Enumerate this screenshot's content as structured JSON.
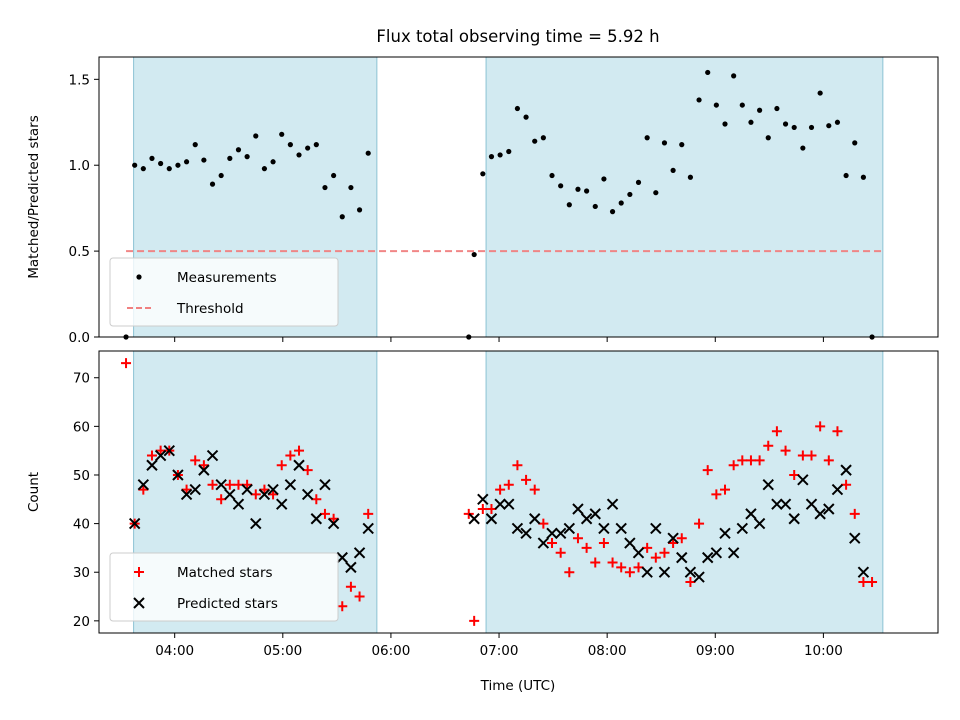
{
  "chart_data": {
    "title": "Flux total observing time = 5.92 h",
    "xlabel": "Time (UTC)",
    "x_unit": "hours (UTC)",
    "x_ticks": [
      {
        "x": 4,
        "label": "04:00"
      },
      {
        "x": 5,
        "label": "05:00"
      },
      {
        "x": 6,
        "label": "06:00"
      },
      {
        "x": 7,
        "label": "07:00"
      },
      {
        "x": 8,
        "label": "08:00"
      },
      {
        "x": 9,
        "label": "09:00"
      },
      {
        "x": 10,
        "label": "10:00"
      }
    ],
    "xlim": [
      3.3,
      11.06
    ],
    "shaded_intervals": [
      [
        3.62,
        5.87
      ],
      [
        6.88,
        10.55
      ]
    ],
    "shade_color": "#add8e6",
    "panels": [
      {
        "type": "scatter",
        "ylabel": "Matched/Predicted stars",
        "ylim": [
          0,
          1.63
        ],
        "yticks": [
          {
            "y": 0.0,
            "label": "0.0"
          },
          {
            "y": 0.5,
            "label": "0.5"
          },
          {
            "y": 1.0,
            "label": "1.0"
          },
          {
            "y": 1.5,
            "label": "1.5"
          }
        ],
        "legend_position": "lower-left",
        "series": [
          {
            "name": "Measurements",
            "marker": "dot",
            "color": "#000000",
            "points": [
              [
                3.55,
                0.0
              ],
              [
                3.63,
                1.0
              ],
              [
                3.71,
                0.98
              ],
              [
                3.79,
                1.04
              ],
              [
                3.87,
                1.01
              ],
              [
                3.95,
                0.98
              ],
              [
                4.03,
                1.0
              ],
              [
                4.11,
                1.02
              ],
              [
                4.19,
                1.12
              ],
              [
                4.27,
                1.03
              ],
              [
                4.35,
                0.89
              ],
              [
                4.43,
                0.94
              ],
              [
                4.51,
                1.04
              ],
              [
                4.59,
                1.09
              ],
              [
                4.67,
                1.05
              ],
              [
                4.75,
                1.17
              ],
              [
                4.83,
                0.98
              ],
              [
                4.91,
                1.02
              ],
              [
                4.99,
                1.18
              ],
              [
                5.07,
                1.12
              ],
              [
                5.15,
                1.06
              ],
              [
                5.23,
                1.1
              ],
              [
                5.31,
                1.12
              ],
              [
                5.39,
                0.87
              ],
              [
                5.47,
                0.94
              ],
              [
                5.55,
                0.7
              ],
              [
                5.63,
                0.87
              ],
              [
                5.71,
                0.74
              ],
              [
                5.79,
                1.07
              ],
              [
                6.72,
                0.0
              ],
              [
                6.77,
                0.48
              ],
              [
                6.85,
                0.95
              ],
              [
                6.93,
                1.05
              ],
              [
                7.01,
                1.06
              ],
              [
                7.09,
                1.08
              ],
              [
                7.17,
                1.33
              ],
              [
                7.25,
                1.28
              ],
              [
                7.33,
                1.14
              ],
              [
                7.41,
                1.16
              ],
              [
                7.49,
                0.94
              ],
              [
                7.57,
                0.88
              ],
              [
                7.65,
                0.77
              ],
              [
                7.73,
                0.86
              ],
              [
                7.81,
                0.85
              ],
              [
                7.89,
                0.76
              ],
              [
                7.97,
                0.92
              ],
              [
                8.05,
                0.73
              ],
              [
                8.13,
                0.78
              ],
              [
                8.21,
                0.83
              ],
              [
                8.29,
                0.9
              ],
              [
                8.37,
                1.16
              ],
              [
                8.45,
                0.84
              ],
              [
                8.53,
                1.13
              ],
              [
                8.61,
                0.97
              ],
              [
                8.69,
                1.12
              ],
              [
                8.77,
                0.93
              ],
              [
                8.85,
                1.38
              ],
              [
                8.93,
                1.54
              ],
              [
                9.01,
                1.35
              ],
              [
                9.09,
                1.24
              ],
              [
                9.17,
                1.52
              ],
              [
                9.25,
                1.35
              ],
              [
                9.33,
                1.25
              ],
              [
                9.41,
                1.32
              ],
              [
                9.49,
                1.16
              ],
              [
                9.57,
                1.33
              ],
              [
                9.65,
                1.24
              ],
              [
                9.73,
                1.22
              ],
              [
                9.81,
                1.1
              ],
              [
                9.89,
                1.22
              ],
              [
                9.97,
                1.42
              ],
              [
                10.05,
                1.23
              ],
              [
                10.13,
                1.25
              ],
              [
                10.21,
                0.94
              ],
              [
                10.29,
                1.13
              ],
              [
                10.37,
                0.93
              ],
              [
                10.45,
                0.0
              ]
            ]
          },
          {
            "name": "Threshold",
            "marker": "dashed-line",
            "color": "#f08080",
            "points": [
              [
                3.55,
                0.5
              ],
              [
                10.55,
                0.5
              ]
            ]
          }
        ]
      },
      {
        "type": "scatter",
        "ylabel": "Count",
        "ylim": [
          17.5,
          75.5
        ],
        "yticks": [
          {
            "y": 20,
            "label": "20"
          },
          {
            "y": 30,
            "label": "30"
          },
          {
            "y": 40,
            "label": "40"
          },
          {
            "y": 50,
            "label": "50"
          },
          {
            "y": 60,
            "label": "60"
          },
          {
            "y": 70,
            "label": "70"
          }
        ],
        "legend_position": "lower-left",
        "series": [
          {
            "name": "Matched stars",
            "marker": "plus",
            "color": "#ff0000",
            "points": [
              [
                3.55,
                73
              ],
              [
                3.63,
                40
              ],
              [
                3.71,
                47
              ],
              [
                3.79,
                54
              ],
              [
                3.87,
                55
              ],
              [
                3.95,
                55
              ],
              [
                4.03,
                50
              ],
              [
                4.11,
                47
              ],
              [
                4.19,
                53
              ],
              [
                4.27,
                52
              ],
              [
                4.35,
                48
              ],
              [
                4.43,
                45
              ],
              [
                4.51,
                48
              ],
              [
                4.59,
                48
              ],
              [
                4.67,
                48
              ],
              [
                4.75,
                46
              ],
              [
                4.83,
                47
              ],
              [
                4.91,
                46
              ],
              [
                4.99,
                52
              ],
              [
                5.07,
                54
              ],
              [
                5.15,
                55
              ],
              [
                5.23,
                51
              ],
              [
                5.31,
                45
              ],
              [
                5.39,
                42
              ],
              [
                5.47,
                41
              ],
              [
                5.55,
                23
              ],
              [
                5.63,
                27
              ],
              [
                5.71,
                25
              ],
              [
                5.79,
                42
              ],
              [
                6.72,
                42
              ],
              [
                6.77,
                20
              ],
              [
                6.85,
                43
              ],
              [
                6.93,
                43
              ],
              [
                7.01,
                47
              ],
              [
                7.09,
                48
              ],
              [
                7.17,
                52
              ],
              [
                7.25,
                49
              ],
              [
                7.33,
                47
              ],
              [
                7.41,
                40
              ],
              [
                7.49,
                36
              ],
              [
                7.57,
                34
              ],
              [
                7.65,
                30
              ],
              [
                7.73,
                37
              ],
              [
                7.81,
                35
              ],
              [
                7.89,
                32
              ],
              [
                7.97,
                36
              ],
              [
                8.05,
                32
              ],
              [
                8.13,
                31
              ],
              [
                8.21,
                30
              ],
              [
                8.29,
                31
              ],
              [
                8.37,
                35
              ],
              [
                8.45,
                33
              ],
              [
                8.53,
                34
              ],
              [
                8.61,
                36
              ],
              [
                8.69,
                37
              ],
              [
                8.77,
                28
              ],
              [
                8.85,
                40
              ],
              [
                8.93,
                51
              ],
              [
                9.01,
                46
              ],
              [
                9.09,
                47
              ],
              [
                9.17,
                52
              ],
              [
                9.25,
                53
              ],
              [
                9.33,
                53
              ],
              [
                9.41,
                53
              ],
              [
                9.49,
                56
              ],
              [
                9.57,
                59
              ],
              [
                9.65,
                55
              ],
              [
                9.73,
                50
              ],
              [
                9.81,
                54
              ],
              [
                9.89,
                54
              ],
              [
                9.97,
                60
              ],
              [
                10.05,
                53
              ],
              [
                10.13,
                59
              ],
              [
                10.21,
                48
              ],
              [
                10.29,
                42
              ],
              [
                10.37,
                28
              ],
              [
                10.45,
                28
              ]
            ]
          },
          {
            "name": "Predicted stars",
            "marker": "x",
            "color": "#000000",
            "points": [
              [
                3.63,
                40
              ],
              [
                3.71,
                48
              ],
              [
                3.79,
                52
              ],
              [
                3.87,
                54
              ],
              [
                3.95,
                55
              ],
              [
                4.03,
                50
              ],
              [
                4.11,
                46
              ],
              [
                4.19,
                47
              ],
              [
                4.27,
                51
              ],
              [
                4.35,
                54
              ],
              [
                4.43,
                48
              ],
              [
                4.51,
                46
              ],
              [
                4.59,
                44
              ],
              [
                4.67,
                47
              ],
              [
                4.75,
                40
              ],
              [
                4.83,
                46
              ],
              [
                4.91,
                47
              ],
              [
                4.99,
                44
              ],
              [
                5.07,
                48
              ],
              [
                5.15,
                52
              ],
              [
                5.23,
                46
              ],
              [
                5.31,
                41
              ],
              [
                5.39,
                48
              ],
              [
                5.47,
                40
              ],
              [
                5.55,
                33
              ],
              [
                5.63,
                31
              ],
              [
                5.71,
                34
              ],
              [
                5.79,
                39
              ],
              [
                6.77,
                41
              ],
              [
                6.85,
                45
              ],
              [
                6.93,
                41
              ],
              [
                7.01,
                44
              ],
              [
                7.09,
                44
              ],
              [
                7.17,
                39
              ],
              [
                7.25,
                38
              ],
              [
                7.33,
                41
              ],
              [
                7.41,
                36
              ],
              [
                7.49,
                38
              ],
              [
                7.57,
                38
              ],
              [
                7.65,
                39
              ],
              [
                7.73,
                43
              ],
              [
                7.81,
                41
              ],
              [
                7.89,
                42
              ],
              [
                7.97,
                39
              ],
              [
                8.05,
                44
              ],
              [
                8.13,
                39
              ],
              [
                8.21,
                36
              ],
              [
                8.29,
                34
              ],
              [
                8.37,
                30
              ],
              [
                8.45,
                39
              ],
              [
                8.53,
                30
              ],
              [
                8.61,
                37
              ],
              [
                8.69,
                33
              ],
              [
                8.77,
                30
              ],
              [
                8.85,
                29
              ],
              [
                8.93,
                33
              ],
              [
                9.01,
                34
              ],
              [
                9.09,
                38
              ],
              [
                9.17,
                34
              ],
              [
                9.25,
                39
              ],
              [
                9.33,
                42
              ],
              [
                9.41,
                40
              ],
              [
                9.49,
                48
              ],
              [
                9.57,
                44
              ],
              [
                9.65,
                44
              ],
              [
                9.73,
                41
              ],
              [
                9.81,
                49
              ],
              [
                9.89,
                44
              ],
              [
                9.97,
                42
              ],
              [
                10.05,
                43
              ],
              [
                10.13,
                47
              ],
              [
                10.21,
                51
              ],
              [
                10.29,
                37
              ],
              [
                10.37,
                30
              ]
            ]
          }
        ]
      }
    ]
  }
}
